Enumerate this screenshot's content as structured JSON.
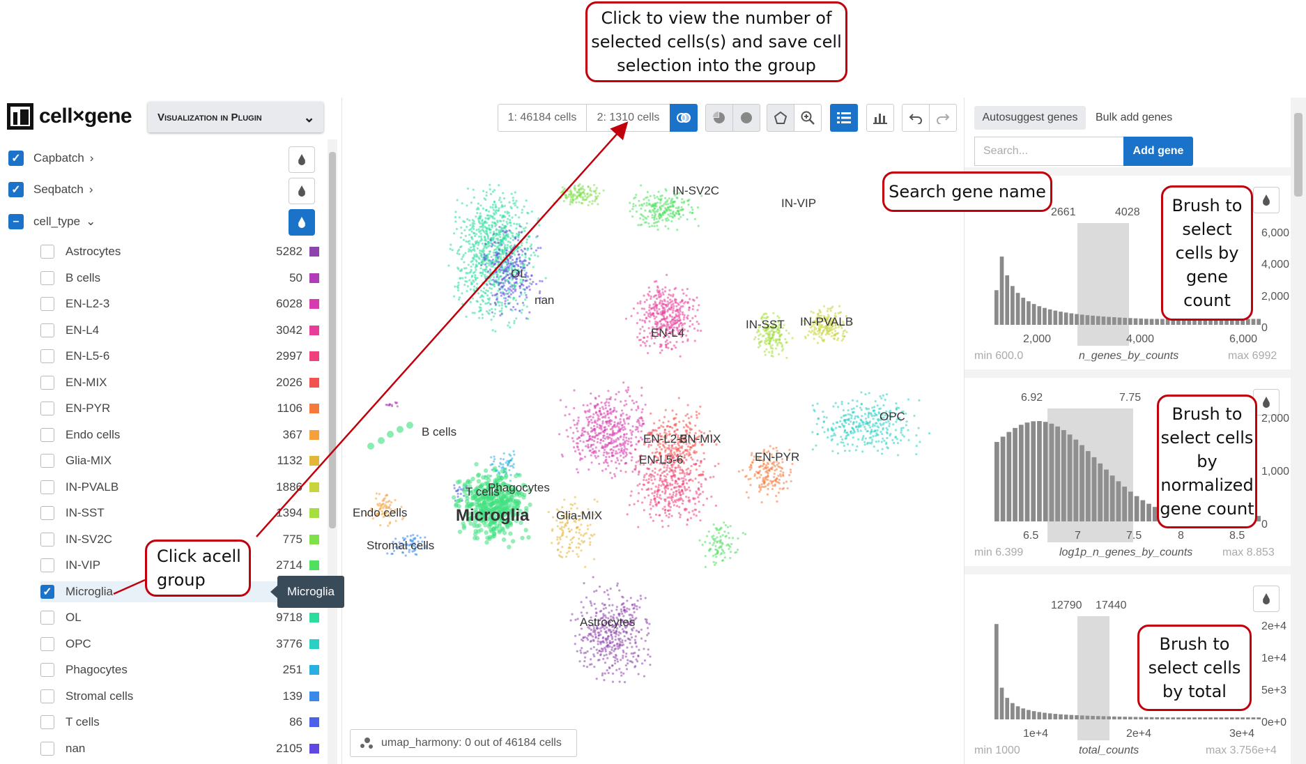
{
  "app": {
    "logo_text": "cell×gene",
    "plugin_dropdown": "Visualization in Plugin"
  },
  "categories": [
    {
      "label": "Capbatch",
      "checked": true
    },
    {
      "label": "Seqbatch",
      "checked": true
    },
    {
      "label": "cell_type",
      "checked": "partial"
    }
  ],
  "cell_types": [
    {
      "name": "Astrocytes",
      "count": "5282",
      "color": "#8e44ad"
    },
    {
      "name": "B cells",
      "count": "50",
      "color": "#b03cb8"
    },
    {
      "name": "EN-L2-3",
      "count": "6028",
      "color": "#d63caf"
    },
    {
      "name": "EN-L4",
      "count": "3042",
      "color": "#e83c9a"
    },
    {
      "name": "EN-L5-6",
      "count": "2997",
      "color": "#f0427a"
    },
    {
      "name": "EN-MIX",
      "count": "2026",
      "color": "#f2524c"
    },
    {
      "name": "EN-PYR",
      "count": "1106",
      "color": "#f5793a"
    },
    {
      "name": "Endo cells",
      "count": "367",
      "color": "#f5a03a"
    },
    {
      "name": "Glia-MIX",
      "count": "1132",
      "color": "#e3b63a"
    },
    {
      "name": "IN-PVALB",
      "count": "1886",
      "color": "#c9d43a"
    },
    {
      "name": "IN-SST",
      "count": "1394",
      "color": "#a6de3f"
    },
    {
      "name": "IN-SV2C",
      "count": "775",
      "color": "#7ee04a"
    },
    {
      "name": "IN-VIP",
      "count": "2714",
      "color": "#4fe05e"
    },
    {
      "name": "Microglia",
      "count": "1310",
      "color": "#3ee07e",
      "checked": true
    },
    {
      "name": "OL",
      "count": "9718",
      "color": "#2edc9e"
    },
    {
      "name": "OPC",
      "count": "3776",
      "color": "#2ad0c4"
    },
    {
      "name": "Phagocytes",
      "count": "251",
      "color": "#2ab0e0"
    },
    {
      "name": "Stromal cells",
      "count": "139",
      "color": "#3a88e8"
    },
    {
      "name": "T cells",
      "count": "86",
      "color": "#4a62e8"
    },
    {
      "name": "nan",
      "count": "2105",
      "color": "#6248e0"
    }
  ],
  "tooltip": "Microglia",
  "toolbar": {
    "subset1": "1: 46184 cells",
    "subset2": "2: 1310 cells"
  },
  "embedding": {
    "footer": "umap_harmony: 0 out of 46184 cells",
    "labels": [
      "IN-SV2C",
      "IN-VIP",
      "OL",
      "nan",
      "EN-L4",
      "IN-SST",
      "IN-PVALB",
      "OPC",
      "B cells",
      "EN-L2-3",
      "EN-MIX",
      "EN-L5-6",
      "EN-PYR",
      "T cells",
      "Phagocytes",
      "Microglia",
      "Glia-MIX",
      "Endo cells",
      "Stromal cells",
      "Astrocytes"
    ]
  },
  "genes": {
    "tab_autosuggest": "Autosuggest genes",
    "tab_bulk": "Bulk add genes",
    "search_placeholder": "Search...",
    "add_button": "Add gene"
  },
  "histograms": [
    {
      "name": "n_genes_by_counts",
      "min": "min 600.0",
      "max": "max 6992",
      "sel_lo": "2661",
      "sel_hi": "4028",
      "xticks": [
        "2,000",
        "4,000",
        "6,000"
      ],
      "yticks": [
        "6,000",
        "4,000",
        "2,000",
        "0"
      ]
    },
    {
      "name": "log1p_n_genes_by_counts",
      "min": "min 6.399",
      "max": "max 8.853",
      "sel_lo": "6.92",
      "sel_hi": "7.75",
      "xticks": [
        "6.5",
        "7",
        "7.5",
        "8",
        "8.5"
      ],
      "yticks": [
        "2,000",
        "1,000",
        "0"
      ]
    },
    {
      "name": "total_counts",
      "min": "min 1000",
      "max": "max 3.756e+4",
      "sel_lo": "12790",
      "sel_hi": "17440",
      "xticks": [
        "1e+4",
        "2e+4",
        "3e+4"
      ],
      "yticks": [
        "2e+4",
        "1e+4",
        "5e+3",
        "0e+0"
      ]
    }
  ],
  "callouts": {
    "top": "Click to view the number of selected cells(s) and save cell selection into the group",
    "search": "Search gene name",
    "group": "Click acell group",
    "hist1": "Brush to select cells by gene count",
    "hist2": "Brush to select cells by normalized gene count",
    "hist3": "Brush to select cells by total"
  },
  "colors": {
    "accent": "#1a73c8",
    "callout_border": "#c0000b",
    "tooltip_bg": "#394b59"
  }
}
